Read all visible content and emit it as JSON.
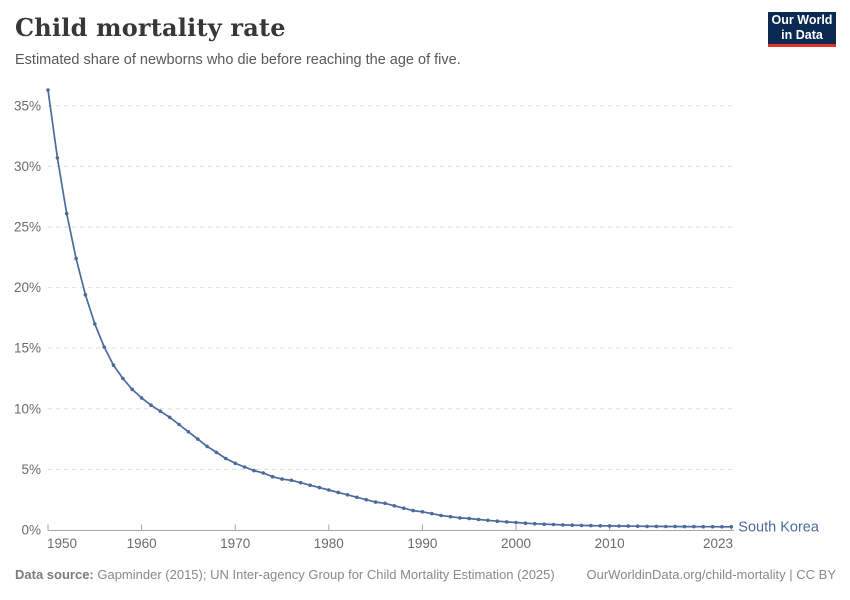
{
  "header": {
    "title": "Child mortality rate",
    "subtitle": "Estimated share of newborns who die before reaching the age of five.",
    "logo": {
      "line1": "Our World",
      "line2": "in Data"
    }
  },
  "footer": {
    "source_label": "Data source:",
    "source_text": " Gapminder (2015); UN Inter-agency Group for Child Mortality Estimation (2025)",
    "link_text": "OurWorldinData.org/child-mortality | CC BY"
  },
  "colors": {
    "line": "#4C6A9C",
    "series_label": "#4C6A9C",
    "grid": "#DDDDDD",
    "axis": "#A6A6A6",
    "tick_label": "#6B6B6B",
    "logo_bg": "#0A2A51",
    "logo_accent": "#E0312B"
  },
  "chart_data": {
    "type": "line",
    "title": "Child mortality rate",
    "xlabel": "",
    "ylabel": "",
    "grid": "horizontal-dashed",
    "legend": "end-of-line-label",
    "xlim": [
      1950,
      2023
    ],
    "ylim": [
      0,
      36.3
    ],
    "x_ticks": [
      1950,
      1960,
      1970,
      1980,
      1990,
      2000,
      2010,
      2023
    ],
    "y_ticks": [
      0,
      5,
      10,
      15,
      20,
      25,
      30,
      35
    ],
    "y_tick_suffix": "%",
    "series": [
      {
        "name": "South Korea",
        "x": [
          1950,
          1951,
          1952,
          1953,
          1954,
          1955,
          1956,
          1957,
          1958,
          1959,
          1960,
          1961,
          1962,
          1963,
          1964,
          1965,
          1966,
          1967,
          1968,
          1969,
          1970,
          1971,
          1972,
          1973,
          1974,
          1975,
          1976,
          1977,
          1978,
          1979,
          1980,
          1981,
          1982,
          1983,
          1984,
          1985,
          1986,
          1987,
          1988,
          1989,
          1990,
          1991,
          1992,
          1993,
          1994,
          1995,
          1996,
          1997,
          1998,
          1999,
          2000,
          2001,
          2002,
          2003,
          2004,
          2005,
          2006,
          2007,
          2008,
          2009,
          2010,
          2011,
          2012,
          2013,
          2014,
          2015,
          2016,
          2017,
          2018,
          2019,
          2020,
          2021,
          2022,
          2023
        ],
        "values": [
          36.3,
          30.7,
          26.1,
          22.4,
          19.4,
          17.0,
          15.1,
          13.6,
          12.5,
          11.6,
          10.9,
          10.3,
          9.8,
          9.3,
          8.7,
          8.1,
          7.5,
          6.9,
          6.4,
          5.9,
          5.5,
          5.2,
          4.9,
          4.7,
          4.4,
          4.2,
          4.1,
          3.9,
          3.7,
          3.5,
          3.3,
          3.1,
          2.9,
          2.7,
          2.5,
          2.3,
          2.2,
          2.0,
          1.8,
          1.6,
          1.5,
          1.35,
          1.2,
          1.1,
          1.0,
          0.95,
          0.87,
          0.8,
          0.73,
          0.67,
          0.62,
          0.56,
          0.52,
          0.48,
          0.45,
          0.42,
          0.4,
          0.38,
          0.36,
          0.35,
          0.34,
          0.33,
          0.32,
          0.31,
          0.3,
          0.3,
          0.29,
          0.29,
          0.28,
          0.28,
          0.27,
          0.27,
          0.26,
          0.26
        ]
      }
    ]
  }
}
